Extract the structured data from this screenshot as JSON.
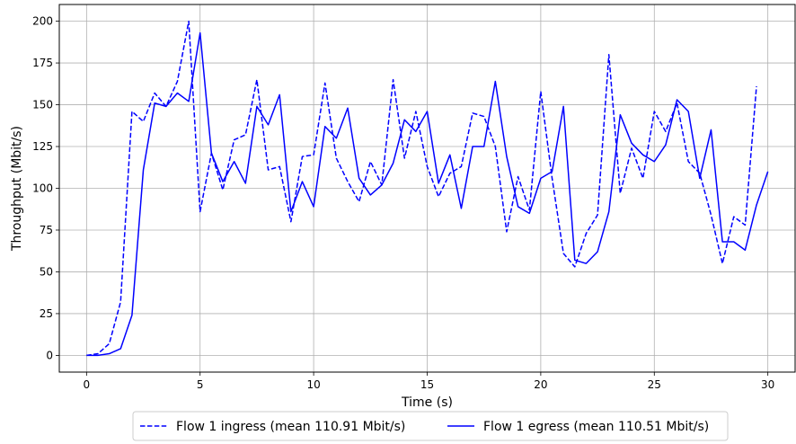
{
  "chart_data": {
    "type": "line",
    "title": "",
    "xlabel": "Time (s)",
    "ylabel": "Throughput (Mbit/s)",
    "xlim": [
      -1.2,
      31.2
    ],
    "ylim": [
      -10,
      210
    ],
    "xticks": [
      0,
      5,
      10,
      15,
      20,
      25,
      30
    ],
    "yticks": [
      0,
      25,
      50,
      75,
      100,
      125,
      150,
      175,
      200
    ],
    "grid": true,
    "legend_position": "bottom-center",
    "series": [
      {
        "name": "Flow 1 ingress (mean 110.91 Mbit/s)",
        "color": "#0000ff",
        "style": "dashed",
        "x": [
          0,
          0.5,
          1,
          1.5,
          2,
          2.5,
          3,
          3.5,
          4,
          4.5,
          5,
          5.5,
          6,
          6.5,
          7,
          7.5,
          8,
          8.5,
          9,
          9.5,
          10,
          10.5,
          11,
          11.5,
          12,
          12.5,
          13,
          13.5,
          14,
          14.5,
          15,
          15.5,
          16,
          16.5,
          17,
          17.5,
          18,
          18.5,
          19,
          19.5,
          20,
          20.5,
          21,
          21.5,
          22,
          22.5,
          23,
          23.5,
          24,
          24.5,
          25,
          25.5,
          26,
          26.5,
          27,
          27.5,
          28,
          28.5,
          29,
          29.5
        ],
        "y": [
          0,
          1,
          7,
          32,
          146,
          140,
          157,
          149,
          164,
          200,
          86,
          121,
          99,
          129,
          132,
          165,
          111,
          113,
          80,
          119,
          120,
          163,
          118,
          104,
          92,
          116,
          102,
          165,
          118,
          146,
          113,
          95,
          109,
          113,
          145,
          143,
          125,
          74,
          107,
          87,
          158,
          106,
          61,
          53,
          73,
          84,
          180,
          97,
          124,
          106,
          146,
          134,
          151,
          116,
          109,
          84,
          55,
          83,
          78,
          161
        ]
      },
      {
        "name": "Flow 1 egress (mean 110.51 Mbit/s)",
        "color": "#0000ff",
        "style": "solid",
        "x": [
          0,
          0.5,
          1,
          1.5,
          2,
          2.5,
          3,
          3.5,
          4,
          4.5,
          5,
          5.5,
          6,
          6.5,
          7,
          7.5,
          8,
          8.5,
          9,
          9.5,
          10,
          10.5,
          11,
          11.5,
          12,
          12.5,
          13,
          13.5,
          14,
          14.5,
          15,
          15.5,
          16,
          16.5,
          17,
          17.5,
          18,
          18.5,
          19,
          19.5,
          20,
          20.5,
          21,
          21.5,
          22,
          22.5,
          23,
          23.5,
          24,
          24.5,
          25,
          25.5,
          26,
          26.5,
          27,
          27.5,
          28,
          28.5,
          29,
          29.5,
          30
        ],
        "y": [
          0,
          0,
          1,
          4,
          24,
          111,
          151,
          149,
          157,
          152,
          193,
          121,
          104,
          116,
          103,
          149,
          138,
          156,
          86,
          104,
          89,
          137,
          130,
          148,
          106,
          96,
          102,
          115,
          141,
          134,
          146,
          103,
          120,
          88,
          125,
          125,
          164,
          119,
          89,
          85,
          106,
          110,
          149,
          57,
          55,
          62,
          86,
          144,
          127,
          120,
          116,
          126,
          153,
          146,
          106,
          135,
          68,
          68,
          63,
          90,
          110
        ]
      }
    ]
  }
}
